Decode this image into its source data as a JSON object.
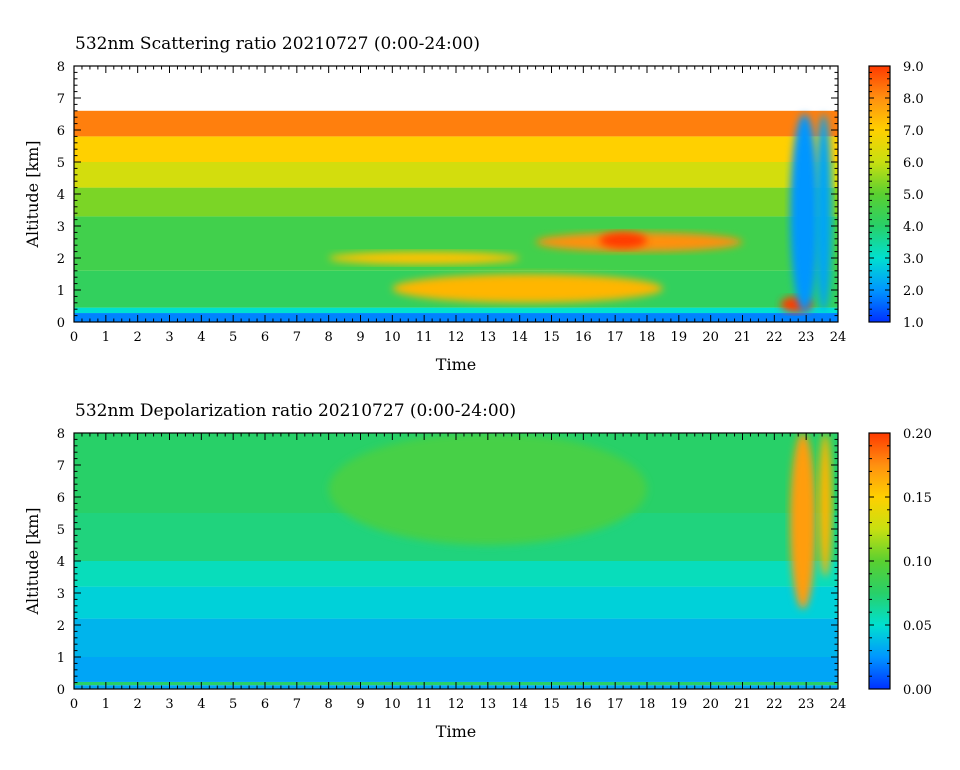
{
  "chart_data": [
    {
      "type": "heatmap",
      "title": "532nm Scattering ratio  20210727 (0:00-24:00)",
      "xlabel": "Time",
      "ylabel": "Altitude [km]",
      "xlim": [
        0,
        24
      ],
      "ylim": [
        0,
        8
      ],
      "x_ticks": [
        "0",
        "1",
        "2",
        "3",
        "4",
        "5",
        "6",
        "7",
        "8",
        "9",
        "10",
        "11",
        "12",
        "13",
        "14",
        "15",
        "16",
        "17",
        "18",
        "19",
        "20",
        "21",
        "22",
        "23",
        "24"
      ],
      "y_ticks": [
        "0",
        "1",
        "2",
        "3",
        "4",
        "5",
        "6",
        "7",
        "8"
      ],
      "colorbar": {
        "range": [
          1.0,
          9.0
        ],
        "tick_labels": [
          "1.0",
          "2.0",
          "3.0",
          "4.0",
          "5.0",
          "6.0",
          "7.0",
          "8.0",
          "9.0"
        ],
        "palette": [
          "#0030ff",
          "#0096ff",
          "#00e0d0",
          "#28d068",
          "#5ad030",
          "#c8e010",
          "#ffd000",
          "#ff9010",
          "#ff3a00"
        ]
      },
      "grid": false,
      "layers": [
        {
          "alt_from": 0.0,
          "alt_to": 0.28,
          "value": 1.8
        },
        {
          "alt_from": 0.28,
          "alt_to": 0.45,
          "value": 3.0
        },
        {
          "alt_from": 0.45,
          "alt_to": 1.6,
          "value": 4.2
        },
        {
          "alt_from": 1.6,
          "alt_to": 3.3,
          "value": 4.5
        },
        {
          "alt_from": 3.3,
          "alt_to": 4.2,
          "value": 5.3
        },
        {
          "alt_from": 4.2,
          "alt_to": 5.0,
          "value": 6.2
        },
        {
          "alt_from": 5.0,
          "alt_to": 5.8,
          "value": 7.0
        },
        {
          "alt_from": 5.8,
          "alt_to": 6.6,
          "value": 8.2
        }
      ],
      "features": [
        {
          "t_from": 8.0,
          "t_to": 14.0,
          "alt_from": 1.8,
          "alt_to": 2.2,
          "value": 7.2
        },
        {
          "t_from": 10.0,
          "t_to": 18.5,
          "alt_from": 0.6,
          "alt_to": 1.5,
          "value": 7.4
        },
        {
          "t_from": 14.5,
          "t_to": 21.0,
          "alt_from": 2.2,
          "alt_to": 2.8,
          "value": 8.0
        },
        {
          "t_from": 16.5,
          "t_to": 18.0,
          "alt_from": 2.3,
          "alt_to": 2.8,
          "value": 9.0
        },
        {
          "t_from": 22.2,
          "t_to": 23.2,
          "alt_from": 0.3,
          "alt_to": 0.8,
          "value": 9.0
        },
        {
          "t_from": 22.5,
          "t_to": 23.4,
          "alt_from": 0.3,
          "alt_to": 6.5,
          "value": 2.0
        },
        {
          "t_from": 23.3,
          "t_to": 23.8,
          "alt_from": 0.3,
          "alt_to": 6.5,
          "value": 2.2
        }
      ]
    },
    {
      "type": "heatmap",
      "title": "532nm Depolarization ratio  20210727 (0:00-24:00)",
      "xlabel": "Time",
      "ylabel": "Altitude [km]",
      "xlim": [
        0,
        24
      ],
      "ylim": [
        0,
        8
      ],
      "x_ticks": [
        "0",
        "1",
        "2",
        "3",
        "4",
        "5",
        "6",
        "7",
        "8",
        "9",
        "10",
        "11",
        "12",
        "13",
        "14",
        "15",
        "16",
        "17",
        "18",
        "19",
        "20",
        "21",
        "22",
        "23",
        "24"
      ],
      "y_ticks": [
        "0",
        "1",
        "2",
        "3",
        "4",
        "5",
        "6",
        "7",
        "8"
      ],
      "colorbar": {
        "range": [
          0.0,
          0.2
        ],
        "tick_labels": [
          "0.00",
          "0.05",
          "0.10",
          "0.15",
          "0.20"
        ],
        "palette": [
          "#0030ff",
          "#0096ff",
          "#00e0d0",
          "#28d068",
          "#5ad030",
          "#c8e010",
          "#ffd000",
          "#ff9010",
          "#ff3a00"
        ]
      },
      "grid": false,
      "layers": [
        {
          "alt_from": 0.0,
          "alt_to": 0.12,
          "value": 0.03
        },
        {
          "alt_from": 0.12,
          "alt_to": 0.22,
          "value": 0.075
        },
        {
          "alt_from": 0.22,
          "alt_to": 1.0,
          "value": 0.03
        },
        {
          "alt_from": 1.0,
          "alt_to": 2.2,
          "value": 0.035
        },
        {
          "alt_from": 2.2,
          "alt_to": 3.2,
          "value": 0.045
        },
        {
          "alt_from": 3.2,
          "alt_to": 4.0,
          "value": 0.055
        },
        {
          "alt_from": 4.0,
          "alt_to": 5.5,
          "value": 0.07
        },
        {
          "alt_from": 5.5,
          "alt_to": 8.0,
          "value": 0.075
        }
      ],
      "features": [
        {
          "t_from": 8.0,
          "t_to": 18.0,
          "alt_from": 4.5,
          "alt_to": 8.0,
          "value": 0.09
        },
        {
          "t_from": 22.5,
          "t_to": 23.3,
          "alt_from": 2.5,
          "alt_to": 8.0,
          "value": 0.17
        },
        {
          "t_from": 23.4,
          "t_to": 23.8,
          "alt_from": 3.5,
          "alt_to": 8.0,
          "value": 0.16
        }
      ]
    }
  ]
}
